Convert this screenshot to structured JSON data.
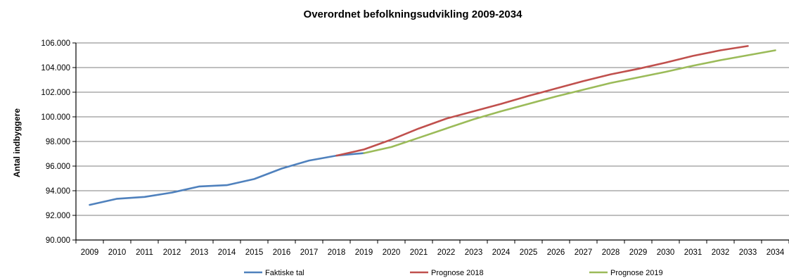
{
  "chart_data": {
    "type": "line",
    "title": "Overordnet befolkningsudvikling 2009-2034",
    "ylabel": "Antal indbyggere",
    "xlabel": "",
    "ylim": [
      90000,
      106000
    ],
    "ytick_values": [
      90000,
      92000,
      94000,
      96000,
      98000,
      100000,
      102000,
      104000,
      106000
    ],
    "ytick_labels": [
      "90.000",
      "92.000",
      "94.000",
      "96.000",
      "98.000",
      "100.000",
      "102.000",
      "104.000",
      "106.000"
    ],
    "categories": [
      "2009",
      "2010",
      "2011",
      "2012",
      "2013",
      "2014",
      "2015",
      "2016",
      "2017",
      "2018",
      "2019",
      "2020",
      "2021",
      "2022",
      "2023",
      "2024",
      "2025",
      "2026",
      "2027",
      "2028",
      "2029",
      "2030",
      "2031",
      "2032",
      "2033",
      "2034"
    ],
    "grid": true,
    "legend_position": "bottom",
    "series": [
      {
        "name": "Faktiske tal",
        "color": "#4f81bd",
        "x": [
          "2009",
          "2010",
          "2011",
          "2012",
          "2013",
          "2014",
          "2015",
          "2016",
          "2017",
          "2018",
          "2019"
        ],
        "values": [
          92850,
          93350,
          93500,
          93850,
          94350,
          94450,
          94950,
          95800,
          96450,
          96850,
          97050
        ]
      },
      {
        "name": "Prognose 2018",
        "color": "#c0504d",
        "x": [
          "2018",
          "2019",
          "2020",
          "2021",
          "2022",
          "2023",
          "2024",
          "2025",
          "2026",
          "2027",
          "2028",
          "2029",
          "2030",
          "2031",
          "2032",
          "2033"
        ],
        "values": [
          96850,
          97350,
          98150,
          99050,
          99850,
          100450,
          101050,
          101700,
          102300,
          102900,
          103450,
          103900,
          104400,
          104950,
          105400,
          105750
        ]
      },
      {
        "name": "Prognose 2019",
        "color": "#9bbb59",
        "x": [
          "2019",
          "2020",
          "2021",
          "2022",
          "2023",
          "2024",
          "2025",
          "2026",
          "2027",
          "2028",
          "2029",
          "2030",
          "2031",
          "2032",
          "2033",
          "2034"
        ],
        "values": [
          97050,
          97550,
          98300,
          99050,
          99800,
          100450,
          101050,
          101650,
          102200,
          102750,
          103200,
          103650,
          104150,
          104600,
          105000,
          105400
        ]
      }
    ]
  }
}
